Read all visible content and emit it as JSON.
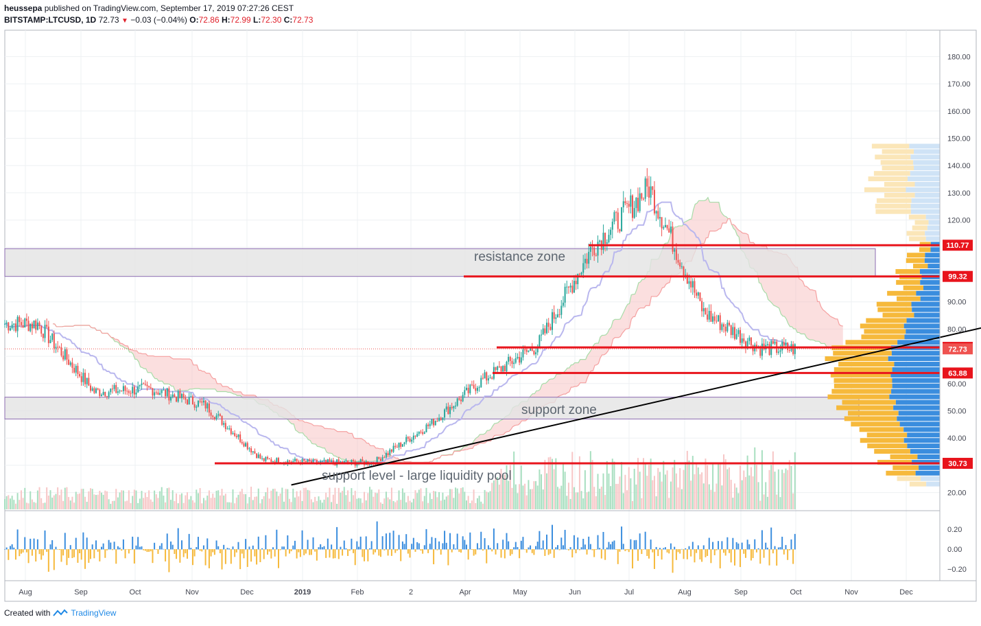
{
  "header": {
    "author": "heussepa",
    "published_text": "published on TradingView.com, September 17, 2019 07:27:26 CEST",
    "symbol": "BITSTAMP:LTCUSD, 1D",
    "last": "72.73",
    "change": "−0.03 (−0.04%)",
    "o_label": "O:",
    "o": "72.86",
    "h_label": "H:",
    "h": "72.99",
    "l_label": "L:",
    "l": "72.30",
    "c_label": "C:",
    "c": "72.73"
  },
  "footer": {
    "created_with": "Created with",
    "brand": "TradingView"
  },
  "annotations": {
    "resistance": "resistance zone",
    "support": "support zone",
    "support_level": "support level - large liquidity pool"
  },
  "colors": {
    "up": "#26a69a",
    "down": "#ef5350",
    "level_line": "#e8141c",
    "zone_fill": "#e3e3e3",
    "zone_border": "#8c6bb1",
    "cloud_red": "#f7b8b8",
    "cloud_green": "#c8ecc8",
    "kijun": "#b9b7ee",
    "tenkan_red": "#f5a0a0",
    "vp_orange": "#f6b93b",
    "vp_blue": "#3a8dde",
    "vp_orange_light": "#fbe6b8",
    "vp_blue_light": "#cfe3f6",
    "osc_blue": "#3a8dde",
    "osc_orange": "#f6b93b"
  },
  "chart_data": {
    "type": "candlestick",
    "symbol": "BITSTAMP:LTCUSD",
    "interval": "1D",
    "price_axis": {
      "ticks": [
        20,
        30,
        40,
        50,
        60,
        70,
        80,
        90,
        100,
        110,
        120,
        130,
        140,
        150,
        160,
        170,
        180
      ],
      "tick_labels": [
        "20.00",
        "30.00",
        "40.00",
        "50.00",
        "60.00",
        "70.00",
        "80.00",
        "90.00",
        "100.00",
        "110.00",
        "120.00",
        "130.00",
        "140.00",
        "150.00",
        "160.00",
        "170.00",
        "180.00"
      ],
      "labeled": [
        20,
        40,
        50,
        60,
        80,
        90,
        120,
        130,
        140,
        150,
        160,
        170,
        180
      ],
      "range": [
        15,
        190
      ]
    },
    "time_axis": [
      "Aug",
      "Sep",
      "Oct",
      "Nov",
      "Dec",
      "2019",
      "Feb",
      "2",
      "Apr",
      "May",
      "Jun",
      "Jul",
      "Aug",
      "Sep",
      "Oct",
      "Nov",
      "Dec"
    ],
    "oscillator_axis": {
      "ticks": [
        0.2,
        0.0,
        -0.2
      ],
      "tick_labels": [
        "0.20",
        "0.00",
        "−0.20"
      ],
      "range": [
        -0.3,
        0.35
      ]
    },
    "price_levels": [
      {
        "label": "110.77",
        "value": 110.77
      },
      {
        "label": "99.32",
        "value": 99.32
      },
      {
        "label": "73.28",
        "value": 73.28
      },
      {
        "label": "72.73",
        "value": 72.73
      },
      {
        "label": "63.88",
        "value": 63.88
      },
      {
        "label": "30.73",
        "value": 30.73
      }
    ],
    "zones": [
      {
        "name": "resistance zone",
        "low": 99.32,
        "high": 109.5
      },
      {
        "name": "support zone",
        "low": 47.0,
        "high": 55.0
      }
    ],
    "trendline": {
      "from": {
        "date": "2018-12-14",
        "price": 22.8
      },
      "to": {
        "date": "2019-12-31",
        "price": 81.0
      }
    },
    "series_monthly_close": [
      {
        "month": "2018-07",
        "close": 82
      },
      {
        "month": "2018-08",
        "close": 57
      },
      {
        "month": "2018-09",
        "close": 58
      },
      {
        "month": "2018-10",
        "close": 52
      },
      {
        "month": "2018-11",
        "close": 32
      },
      {
        "month": "2018-12",
        "close": 31
      },
      {
        "month": "2019-01",
        "close": 31
      },
      {
        "month": "2019-02",
        "close": 45
      },
      {
        "month": "2019-03",
        "close": 61
      },
      {
        "month": "2019-04",
        "close": 74
      },
      {
        "month": "2019-05",
        "close": 110
      },
      {
        "month": "2019-06",
        "close": 132
      },
      {
        "month": "2019-07",
        "close": 86
      },
      {
        "month": "2019-08",
        "close": 73
      },
      {
        "month": "2019-09",
        "close": 72.73
      }
    ]
  }
}
